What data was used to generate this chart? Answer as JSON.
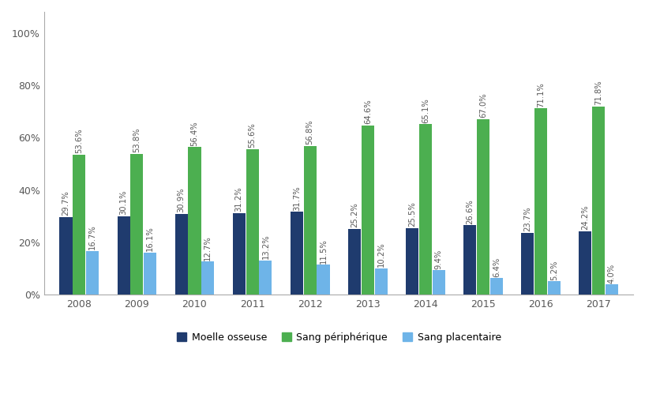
{
  "years": [
    "2008",
    "2009",
    "2010",
    "2011",
    "2012",
    "2013",
    "2014",
    "2015",
    "2016",
    "2017"
  ],
  "moelle_osseuse": [
    29.7,
    30.1,
    30.9,
    31.2,
    31.7,
    25.2,
    25.5,
    26.6,
    23.7,
    24.2
  ],
  "sang_peripherique": [
    53.6,
    53.8,
    56.4,
    55.6,
    56.8,
    64.6,
    65.1,
    67.0,
    71.1,
    71.8
  ],
  "sang_placentaire": [
    16.7,
    16.1,
    12.7,
    13.2,
    11.5,
    10.2,
    9.4,
    6.4,
    5.2,
    4.0
  ],
  "color_moelle": "#1F3B6E",
  "color_sang_peri": "#4CAF50",
  "color_sang_plac": "#6EB4E8",
  "legend_moelle": "Moelle osseuse",
  "legend_peri": "Sang périphérique",
  "legend_plac": "Sang placentaire",
  "ylim": [
    0,
    108
  ],
  "yticks": [
    0,
    20,
    40,
    60,
    80,
    100
  ],
  "ytick_labels": [
    "0%",
    "20%",
    "40%",
    "60%",
    "80%",
    "100%"
  ],
  "bar_width": 0.22,
  "bar_gap": 0.01,
  "background_color": "#ffffff",
  "label_fontsize": 7.2,
  "axis_fontsize": 9,
  "legend_fontsize": 9,
  "spine_color": "#AAAAAA",
  "label_color": "#595959"
}
